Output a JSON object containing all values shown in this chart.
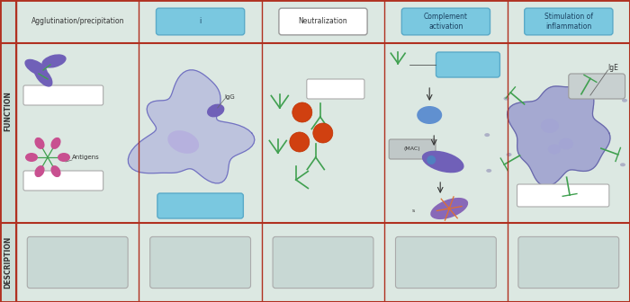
{
  "bg_color": "#dce8e2",
  "border_color": "#b03020",
  "row_label_bg": "#cdddd6",
  "fig_width": 7.0,
  "fig_height": 3.36,
  "col_labels": [
    "Agglutination/precipitation",
    "i",
    "Neutralization",
    "Complement\nactivation",
    "Stimulation of\ninflammation"
  ],
  "col_label_filled": [
    false,
    true,
    false,
    true,
    true
  ],
  "label_box_color": "#7ac8e0",
  "label_text_color": "#1a4060",
  "text_color": "#333333",
  "purple": "#7060b8",
  "pink": "#c85090",
  "green_ab": "#40a050",
  "orange_ag": "#d04010",
  "blue_comp": "#5080c0",
  "cell_blue": "#9090cc"
}
